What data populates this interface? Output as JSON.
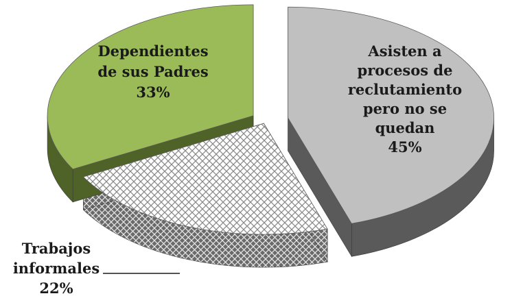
{
  "chart_data": {
    "type": "pie",
    "title": "",
    "three_d": true,
    "exploded": true,
    "slices": [
      {
        "label_lines": [
          "Asisten a",
          "procesos de",
          "reclutamiento",
          "pero no se",
          "quedan"
        ],
        "value": 45,
        "percent_text": "45%",
        "color": "#c0c0c0",
        "side_color": "#5a5a5a",
        "pattern": "solid"
      },
      {
        "label_lines": [
          "Trabajos",
          "informales"
        ],
        "value": 22,
        "percent_text": "22%",
        "color": "#ffffff",
        "side_color": "#707070",
        "pattern": "crosshatch"
      },
      {
        "label_lines": [
          "Dependientes",
          "de sus Padres"
        ],
        "value": 33,
        "percent_text": "33%",
        "color": "#9bbb59",
        "side_color": "#4f6228",
        "pattern": "solid"
      }
    ]
  }
}
